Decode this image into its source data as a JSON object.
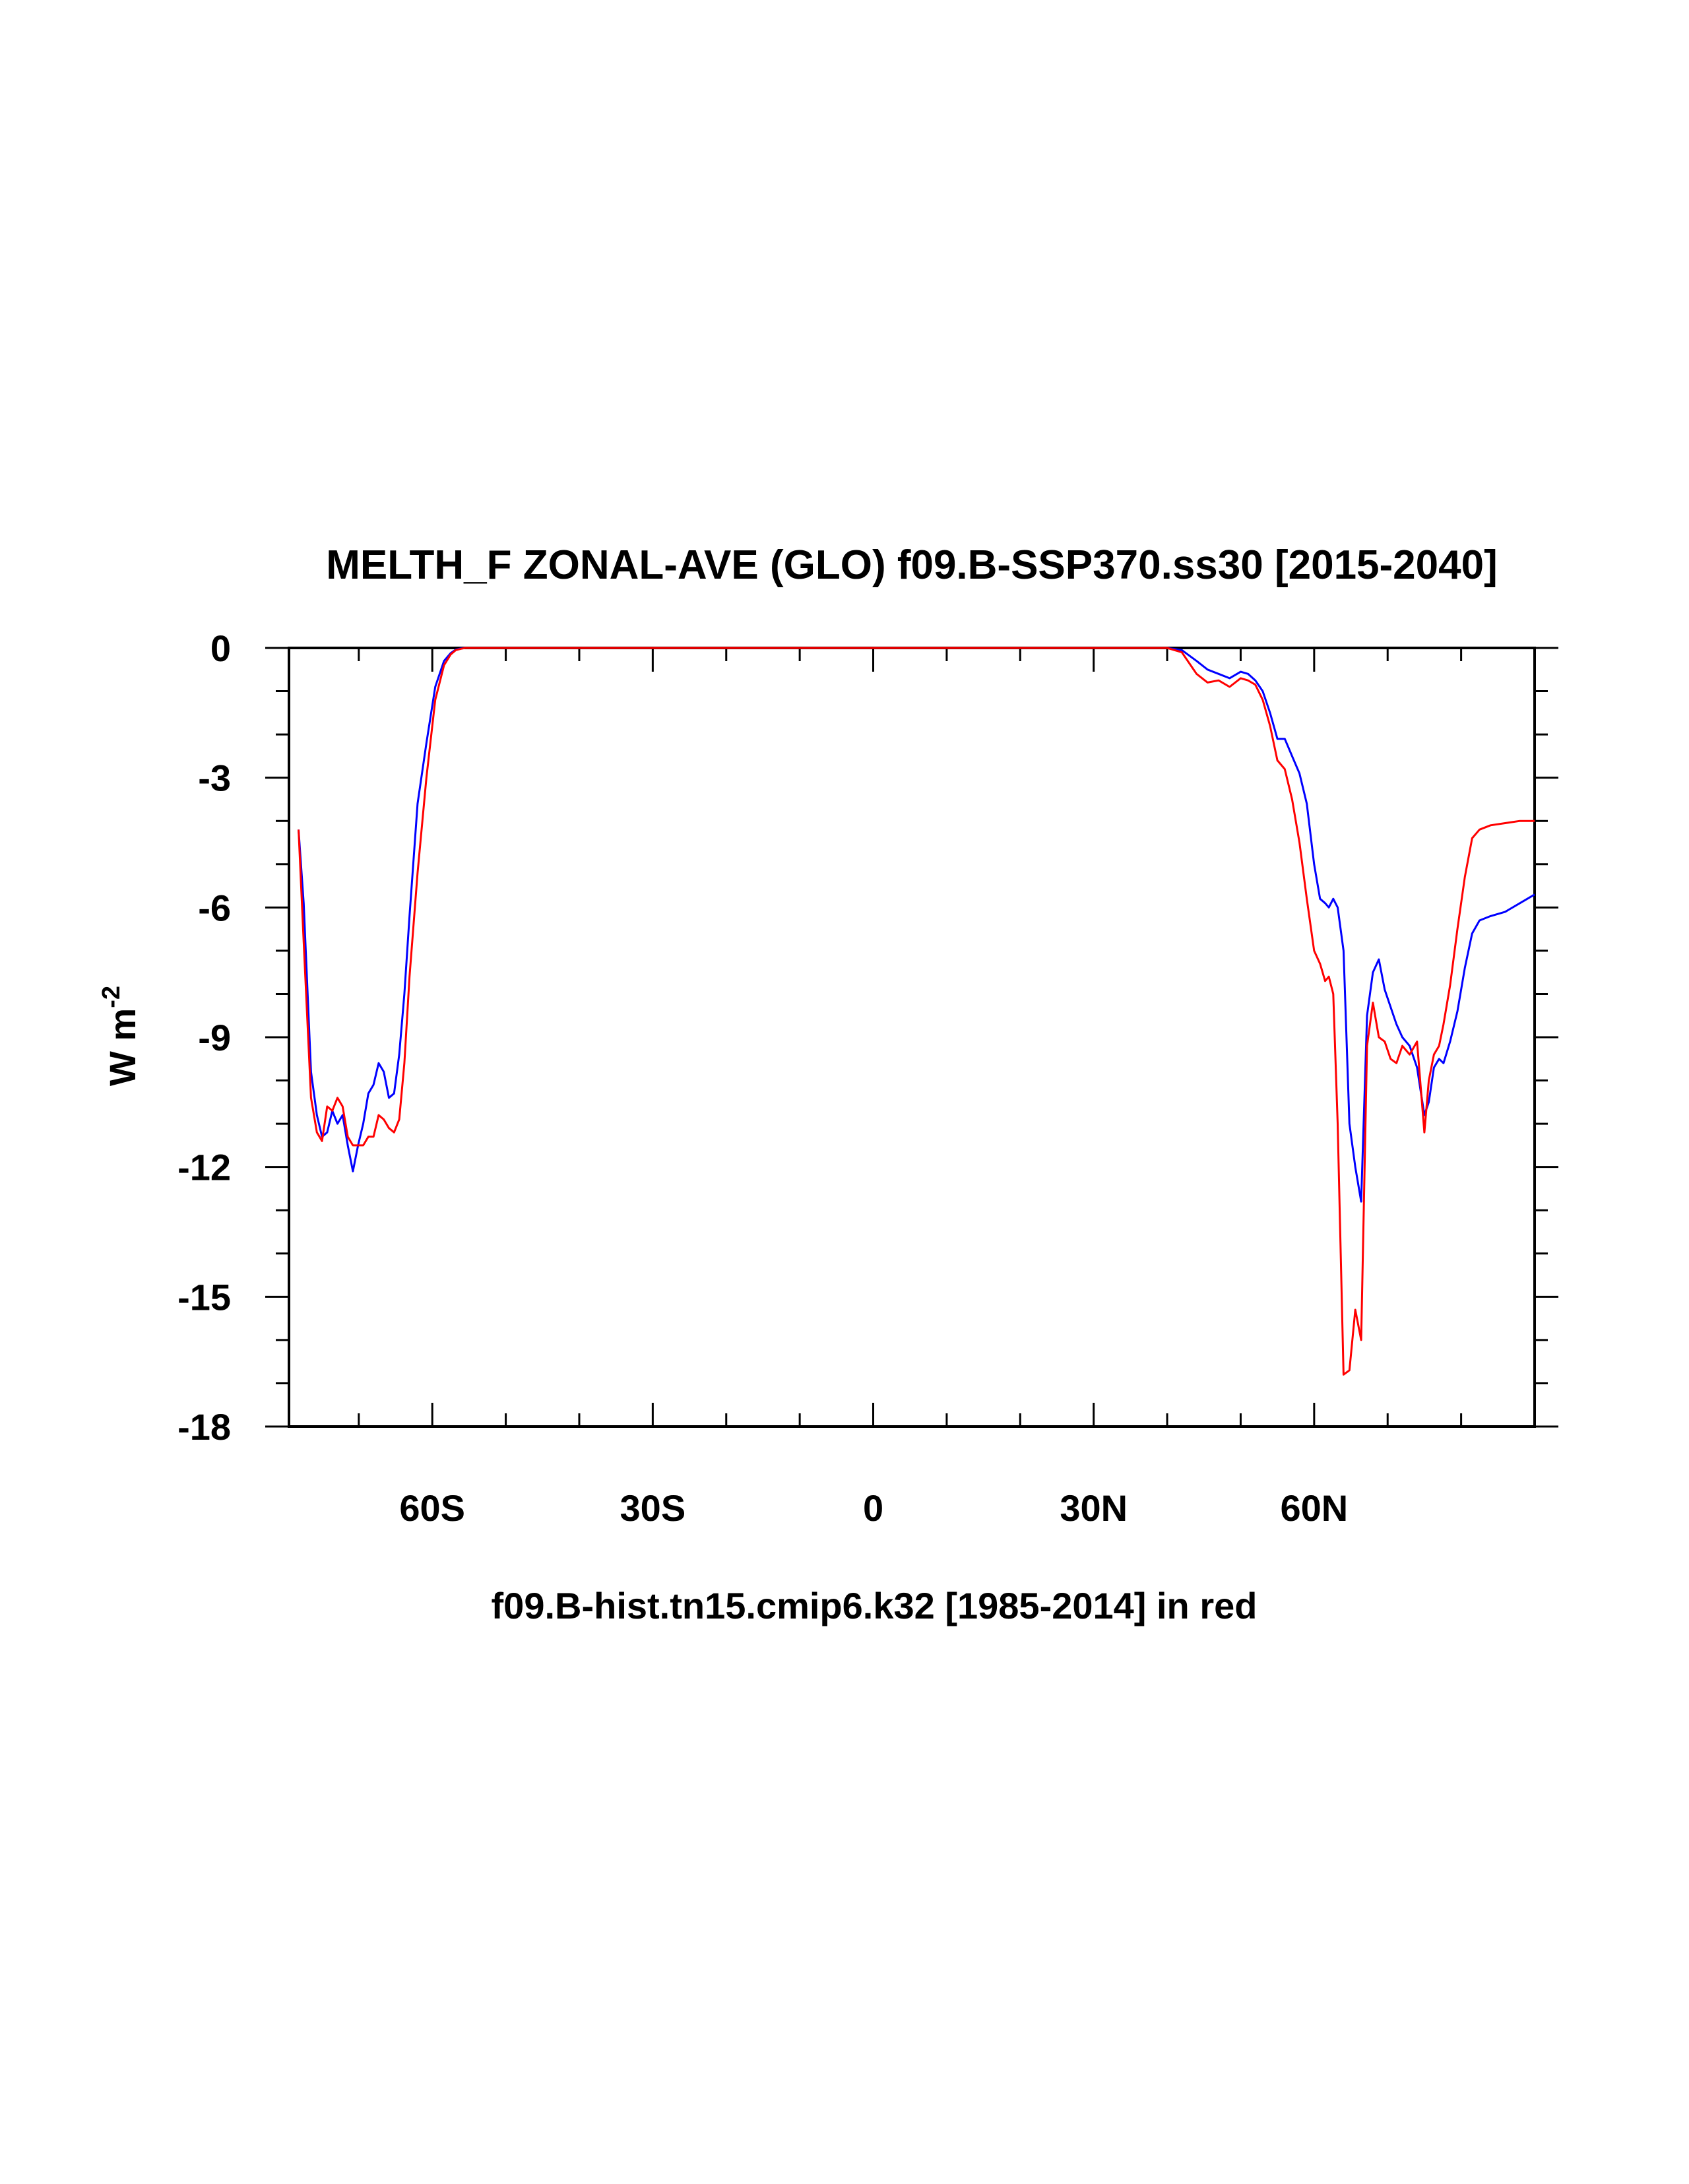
{
  "chart_data": {
    "type": "line",
    "title": "MELTH_F ZONAL-AVE (GLO) f09.B-SSP370.ss30 [2015-2040]",
    "ylabel": "W m",
    "ylabel_sup": "-2",
    "xlabel": "f09.B-hist.tn15.cmip6.k32 [1985-2014] in red",
    "xlim": [
      -79.5,
      90
    ],
    "ylim": [
      -18,
      0
    ],
    "xticks": [
      {
        "value": -60,
        "label": "60S"
      },
      {
        "value": -30,
        "label": "30S"
      },
      {
        "value": 0,
        "label": "0"
      },
      {
        "value": 30,
        "label": "30N"
      },
      {
        "value": 60,
        "label": "60N"
      }
    ],
    "yticks": [
      {
        "value": 0,
        "label": "0"
      },
      {
        "value": -3,
        "label": "-3"
      },
      {
        "value": -6,
        "label": "-6"
      },
      {
        "value": -9,
        "label": "-9"
      },
      {
        "value": -12,
        "label": "-12"
      },
      {
        "value": -15,
        "label": "-15"
      },
      {
        "value": -18,
        "label": "-18"
      }
    ],
    "series": [
      {
        "color": "#0000ff",
        "x": [
          -78.2,
          -77.5,
          -76.5,
          -75.7,
          -75.0,
          -74.3,
          -73.6,
          -72.9,
          -72.2,
          -71.5,
          -70.8,
          -70.1,
          -69.4,
          -68.7,
          -68.0,
          -67.3,
          -66.6,
          -65.9,
          -65.2,
          -64.5,
          -63.8,
          -63.1,
          -62.0,
          -60.8,
          -59.6,
          -58.4,
          -57.5,
          -56.8,
          -56.1,
          -55.5,
          -54.8,
          -54.0,
          -53.0,
          40.0,
          42.0,
          44.0,
          45.5,
          47.0,
          48.5,
          50.0,
          51.0,
          52.0,
          53.0,
          54.0,
          55.0,
          56.0,
          57.0,
          58.0,
          59.0,
          60.0,
          60.8,
          61.5,
          62.0,
          62.6,
          63.2,
          64.0,
          64.8,
          65.6,
          66.4,
          67.2,
          68.0,
          68.8,
          69.6,
          70.4,
          71.2,
          72.0,
          73.0,
          74.0,
          75.0,
          75.6,
          76.3,
          77.0,
          77.6,
          78.5,
          79.5,
          80.5,
          81.5,
          82.5,
          84.0,
          86.0,
          88.0,
          90.0
        ],
        "y": [
          -4.2,
          -5.9,
          -9.8,
          -10.8,
          -11.3,
          -11.2,
          -10.7,
          -11.0,
          -10.8,
          -11.5,
          -12.1,
          -11.5,
          -11.0,
          -10.3,
          -10.1,
          -9.6,
          -9.8,
          -10.4,
          -10.3,
          -9.4,
          -8.0,
          -6.2,
          -3.6,
          -2.2,
          -0.9,
          -0.3,
          -0.12,
          -0.04,
          -0.01,
          0.0,
          0.0,
          0.0,
          0.0,
          0.0,
          -0.05,
          -0.3,
          -0.5,
          -0.6,
          -0.7,
          -0.55,
          -0.6,
          -0.75,
          -1.0,
          -1.5,
          -2.1,
          -2.1,
          -2.5,
          -2.9,
          -3.6,
          -5.0,
          -5.8,
          -5.9,
          -6.0,
          -5.8,
          -6.0,
          -7.0,
          -11.0,
          -12.0,
          -12.8,
          -8.5,
          -7.5,
          -7.2,
          -7.9,
          -8.3,
          -8.7,
          -9.0,
          -9.2,
          -9.7,
          -10.8,
          -10.5,
          -9.7,
          -9.5,
          -9.6,
          -9.1,
          -8.4,
          -7.4,
          -6.6,
          -6.3,
          -6.2,
          -6.1,
          -5.9,
          -5.7
        ]
      },
      {
        "color": "#ff0000",
        "x": [
          -78.2,
          -77.5,
          -76.5,
          -75.7,
          -75.0,
          -74.3,
          -73.6,
          -72.9,
          -72.2,
          -71.5,
          -70.8,
          -70.1,
          -69.4,
          -68.7,
          -68.0,
          -67.3,
          -66.6,
          -65.9,
          -65.2,
          -64.5,
          -63.8,
          -63.1,
          -62.0,
          -60.8,
          -59.6,
          -58.4,
          -57.5,
          -56.8,
          -56.1,
          -55.5,
          -54.8,
          -54.0,
          -53.0,
          40.0,
          42.0,
          44.0,
          45.5,
          47.0,
          48.5,
          50.0,
          51.0,
          52.0,
          53.0,
          54.0,
          55.0,
          56.0,
          57.0,
          58.0,
          59.0,
          60.0,
          60.8,
          61.5,
          62.0,
          62.6,
          63.2,
          64.0,
          64.8,
          65.6,
          66.4,
          67.2,
          68.0,
          68.8,
          69.6,
          70.4,
          71.2,
          72.0,
          73.0,
          74.0,
          75.0,
          75.6,
          76.3,
          77.0,
          77.6,
          78.5,
          79.5,
          80.5,
          81.5,
          82.5,
          84.0,
          86.0,
          88.0,
          90.0
        ],
        "y": [
          -4.2,
          -6.8,
          -10.4,
          -11.2,
          -11.4,
          -10.6,
          -10.7,
          -10.4,
          -10.6,
          -11.3,
          -11.5,
          -11.5,
          -11.5,
          -11.3,
          -11.3,
          -10.8,
          -10.9,
          -11.1,
          -11.2,
          -10.9,
          -9.6,
          -7.6,
          -5.2,
          -3.0,
          -1.2,
          -0.4,
          -0.15,
          -0.05,
          -0.02,
          0.0,
          0.0,
          0.0,
          0.0,
          0.0,
          -0.1,
          -0.6,
          -0.8,
          -0.75,
          -0.9,
          -0.7,
          -0.75,
          -0.85,
          -1.2,
          -1.8,
          -2.6,
          -2.8,
          -3.5,
          -4.5,
          -5.8,
          -7.0,
          -7.3,
          -7.7,
          -7.6,
          -8.0,
          -11.0,
          -16.8,
          -16.7,
          -15.3,
          -16.0,
          -9.2,
          -8.2,
          -9.0,
          -9.1,
          -9.5,
          -9.6,
          -9.2,
          -9.4,
          -9.1,
          -11.2,
          -10.0,
          -9.4,
          -9.2,
          -8.7,
          -7.8,
          -6.5,
          -5.3,
          -4.4,
          -4.2,
          -4.1,
          -4.05,
          -4.0,
          -4.0
        ]
      }
    ]
  }
}
